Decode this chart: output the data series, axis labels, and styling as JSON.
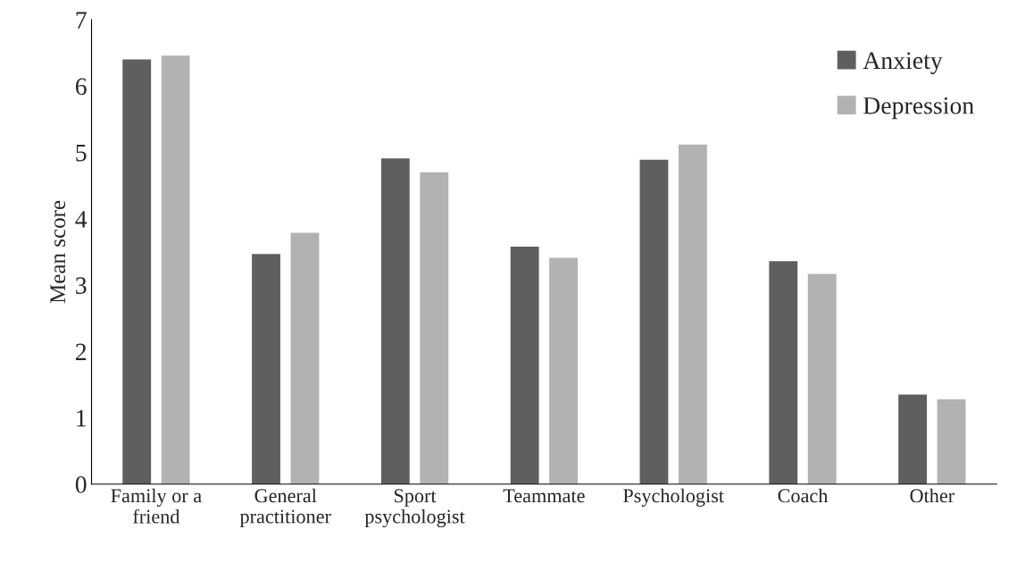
{
  "chart_data": {
    "type": "bar",
    "ylabel": "Mean score",
    "categories": [
      "Family or a\nfriend",
      "General\npractitioner",
      "Sport\npsychologist",
      "Teammate",
      "Psychologist",
      "Coach",
      "Other"
    ],
    "series": [
      {
        "name": "Anxiety",
        "color": "#5f5f5f",
        "values": [
          6.4,
          3.47,
          4.91,
          3.58,
          4.89,
          3.36,
          1.35
        ]
      },
      {
        "name": "Depression",
        "color": "#b2b2b2",
        "values": [
          6.46,
          3.79,
          4.7,
          3.41,
          5.12,
          3.17,
          1.28
        ]
      }
    ],
    "ylim": [
      0,
      7
    ],
    "yticks": [
      0,
      1,
      2,
      3,
      4,
      5,
      6,
      7
    ],
    "grid": false,
    "legend": "top right"
  }
}
